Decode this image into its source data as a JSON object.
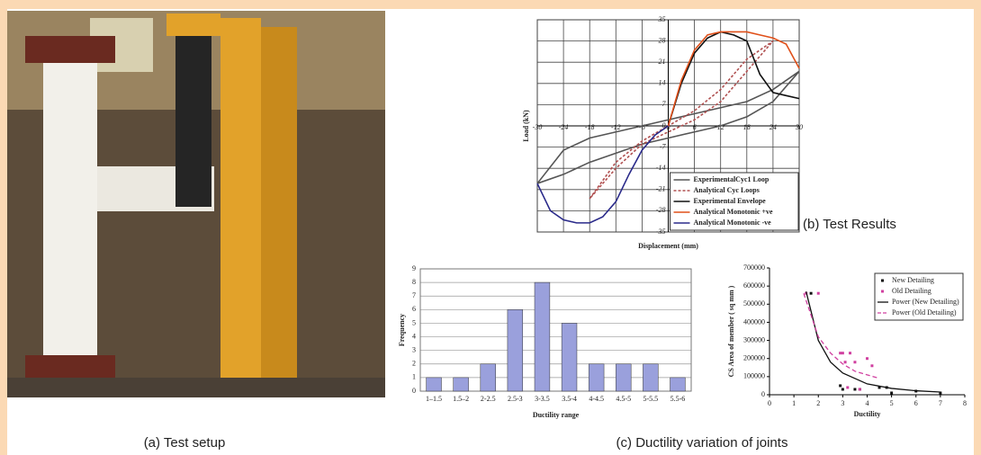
{
  "captions": {
    "a": "(a) Test setup",
    "b": "(b) Test Results",
    "c": "(c) Ductility variation of joints"
  },
  "chart_data": [
    {
      "type": "line",
      "xlabel": "Displacement (mm)",
      "ylabel": "Load (kN)",
      "xlim": [
        -30,
        30
      ],
      "ylim": [
        -35,
        35
      ],
      "xticks": [
        -30,
        -24,
        -18,
        -12,
        -6,
        0,
        6,
        12,
        18,
        24,
        30
      ],
      "yticks": [
        -35,
        -28,
        -21,
        -14,
        -7,
        0,
        7,
        14,
        21,
        28,
        35
      ],
      "grid": true,
      "legend": "lower right",
      "series": [
        {
          "name": "ExperimentalCyc1 Loop",
          "color": "#555555",
          "dash": false,
          "x": [
            -30,
            -24,
            -18,
            -12,
            -6,
            0,
            6,
            12,
            18,
            24,
            30,
            24,
            18,
            12,
            6,
            0,
            -6,
            -12,
            -18,
            -24,
            -30
          ],
          "values": [
            -19,
            -8,
            -4,
            -2,
            0,
            2,
            4,
            6,
            8,
            12,
            18,
            8,
            3,
            0,
            -2,
            -4,
            -6,
            -9,
            -12,
            -16,
            -19
          ]
        },
        {
          "name": "Analytical Cyc Loops",
          "color": "#b05050",
          "dash": true,
          "x": [
            -18,
            -12,
            -6,
            0,
            6,
            12,
            18,
            24,
            18,
            12,
            6,
            0,
            -6,
            -12,
            -18
          ],
          "values": [
            -24,
            -12,
            -5,
            0,
            5,
            12,
            22,
            28,
            18,
            8,
            2,
            -2,
            -6,
            -14,
            -24
          ]
        },
        {
          "name": "Experimental Envelope",
          "color": "#111111",
          "dash": false,
          "x": [
            0,
            3,
            6,
            9,
            12,
            15,
            18,
            21,
            24,
            27,
            30
          ],
          "values": [
            0,
            14,
            24,
            29,
            31,
            30,
            28,
            17,
            11,
            10,
            9
          ]
        },
        {
          "name": "Analytical Monotonic +ve",
          "color": "#e0501a",
          "dash": false,
          "x": [
            0,
            3,
            6,
            9,
            12,
            15,
            18,
            21,
            24,
            27,
            30
          ],
          "values": [
            0,
            15,
            25,
            30,
            31,
            31,
            31,
            30,
            29,
            27,
            19
          ]
        },
        {
          "name": "Analytical Monotonic -ve",
          "color": "#2a2a8a",
          "dash": false,
          "x": [
            0,
            -3,
            -6,
            -9,
            -12,
            -15,
            -18,
            -21,
            -24,
            -27,
            -30
          ],
          "values": [
            0,
            -3,
            -8,
            -16,
            -25,
            -30,
            -32,
            -32,
            -31,
            -28,
            -19
          ]
        }
      ]
    },
    {
      "type": "bar",
      "xlabel": "Ductility range",
      "ylabel": "Frequency",
      "color": "#9aa0dc",
      "categories": [
        "1–1.5",
        "1.5–2",
        "2-2.5",
        "2.5-3",
        "3-3.5",
        "3.5-4",
        "4-4.5",
        "4.5-5",
        "5-5.5",
        "5.5-6"
      ],
      "values": [
        1,
        1,
        2,
        6,
        8,
        5,
        2,
        2,
        2,
        1
      ],
      "ylim": [
        0,
        9
      ],
      "yticks": [
        0,
        1,
        2,
        3,
        4,
        5,
        6,
        7,
        8,
        9
      ],
      "grid": true
    },
    {
      "type": "scatter",
      "xlabel": "Ductility",
      "ylabel": "CS Area of member ( sq mm )",
      "xlim": [
        0,
        8
      ],
      "ylim": [
        0,
        700000
      ],
      "xticks": [
        0,
        1,
        2,
        3,
        4,
        5,
        6,
        7,
        8
      ],
      "yticks": [
        0,
        100000,
        200000,
        300000,
        400000,
        500000,
        600000,
        700000
      ],
      "legend": "upper right",
      "series": [
        {
          "name": "New Detailing",
          "color": "#111111",
          "mode": "markers",
          "x": [
            1.7,
            2.9,
            3,
            3.5,
            3.7,
            4.5,
            4.8,
            5,
            6,
            7
          ],
          "values": [
            560000,
            50000,
            30000,
            30000,
            30000,
            40000,
            40000,
            10000,
            20000,
            10000
          ]
        },
        {
          "name": "Old Detailing",
          "color": "#d040a0",
          "mode": "markers",
          "x": [
            1.5,
            2,
            2.9,
            3,
            3.1,
            3.3,
            3.5,
            3.2,
            4,
            4.2,
            3.7
          ],
          "values": [
            560000,
            560000,
            230000,
            230000,
            180000,
            230000,
            180000,
            40000,
            200000,
            160000,
            30000
          ]
        },
        {
          "name": "Power (New Detailing)",
          "color": "#111111",
          "mode": "line",
          "dash": false,
          "x": [
            1.5,
            2,
            2.5,
            3,
            4,
            5,
            6,
            7
          ],
          "values": [
            570000,
            300000,
            180000,
            120000,
            60000,
            35000,
            22000,
            15000
          ]
        },
        {
          "name": "Power (Old Detailing)",
          "color": "#d040a0",
          "mode": "line",
          "dash": true,
          "x": [
            1.4,
            2,
            2.5,
            3,
            3.5,
            4,
            4.5
          ],
          "values": [
            560000,
            320000,
            230000,
            170000,
            130000,
            110000,
            90000
          ]
        }
      ]
    }
  ]
}
